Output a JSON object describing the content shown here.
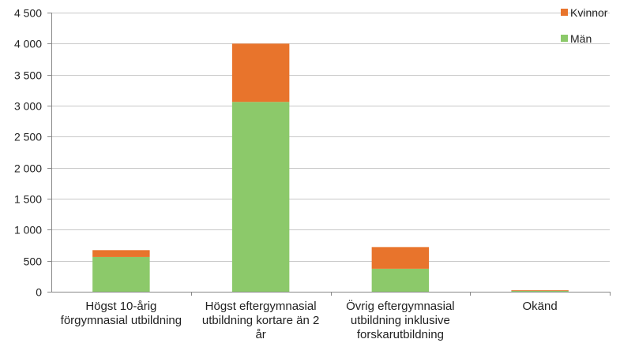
{
  "chart_data": {
    "type": "bar",
    "stacked": true,
    "categories": [
      [
        "Högst 10-årig",
        "förgymnasial utbildning"
      ],
      [
        "Högst eftergymnasial",
        "utbildning kortare än 2",
        "år"
      ],
      [
        "Övrig eftergymnasial",
        "utbildning inklusive",
        "forskarutbildning"
      ],
      [
        "Okänd"
      ]
    ],
    "series": [
      {
        "name": "Män",
        "color": "#8cc96a",
        "values": [
          560,
          3060,
          370,
          15
        ]
      },
      {
        "name": "Kvinnor",
        "color": "#e8742c",
        "values": [
          110,
          940,
          350,
          10
        ]
      }
    ],
    "legend_order": [
      "Kvinnor",
      "Män"
    ],
    "title": "",
    "xlabel": "",
    "ylabel": "",
    "ylim": [
      0,
      4500
    ],
    "yticks": [
      0,
      500,
      1000,
      1500,
      2000,
      2500,
      3000,
      3500,
      4000,
      4500
    ],
    "ytick_labels": [
      "0",
      "500",
      "1 000",
      "1 500",
      "2 000",
      "2 500",
      "3 000",
      "3 500",
      "4 000",
      "4 500"
    ],
    "grid": true,
    "legend_position": "top-right"
  }
}
